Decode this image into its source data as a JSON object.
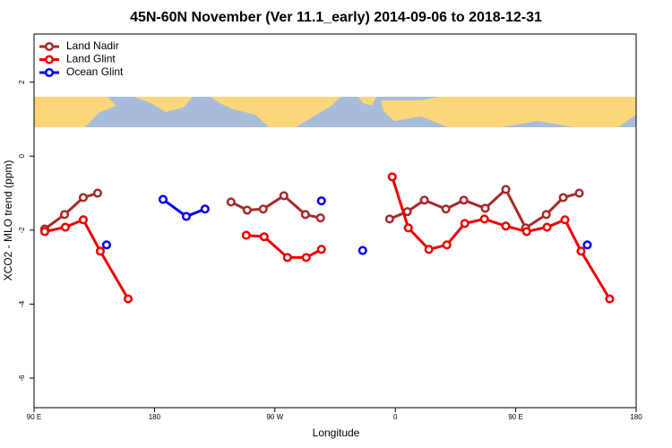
{
  "chart_data": {
    "type": "line",
    "title": "45N-60N November (Ver 11.1_early)   2014-09-06 to 2018-12-31",
    "x_label": "Longitude",
    "y_label": "XCO2 - MLO trend (ppm)",
    "xlim": [
      90,
      540
    ],
    "ylim": [
      -6.8,
      3.3
    ],
    "xticks": [
      {
        "value": 90,
        "label": "90 E"
      },
      180,
      {
        "value": 270,
        "label": "90 W"
      },
      {
        "value": 360,
        "label": "0"
      },
      {
        "value": 450,
        "label": "90 E"
      },
      {
        "value": 540,
        "label": "180"
      }
    ],
    "yticks": [
      -6,
      -4,
      -2,
      0,
      2
    ],
    "legend": "topleft",
    "series": [
      {
        "name": "Land Nadir",
        "color": "#a52a2a",
        "x": [
          98,
          112.8,
          126.8,
          137.5,
          null,
          237.2,
          249.3,
          261.3,
          276.7,
          292.8,
          304.1,
          null,
          355.7,
          369,
          381.7,
          397.8,
          411.2,
          427.2,
          442.6,
          457.4,
          472.8,
          485.5,
          497.5
        ],
        "values": [
          -1.97,
          -1.58,
          -1.12,
          -1.0,
          null,
          -1.24,
          -1.46,
          -1.43,
          -1.07,
          -1.58,
          -1.67,
          null,
          -1.7,
          -1.5,
          -1.19,
          -1.43,
          -1.19,
          -1.41,
          -0.9,
          -1.94,
          -1.58,
          -1.12,
          -1.0
        ]
      },
      {
        "name": "Land Glint",
        "color": "#ee0000",
        "x": [
          98,
          113.4,
          126.8,
          139.5,
          160.3,
          null,
          248.6,
          262,
          279.4,
          293.4,
          304.8,
          null,
          357.7,
          369.7,
          385.1,
          398.5,
          411.9,
          426.6,
          442.6,
          458.1,
          473.4,
          486.8,
          498.8,
          520.2
        ],
        "values": [
          -2.04,
          -1.92,
          -1.72,
          -2.57,
          -3.86,
          null,
          -2.14,
          -2.18,
          -2.74,
          -2.74,
          -2.52,
          null,
          -0.56,
          -1.94,
          -2.52,
          -2.4,
          -1.82,
          -1.7,
          -1.89,
          -2.04,
          -1.92,
          -1.72,
          -2.57,
          -3.86
        ]
      },
      {
        "name": "Ocean Glint",
        "color": "#0000ee",
        "x": [
          144.2,
          null,
          186.4,
          203.8,
          217.8,
          null,
          304.8,
          null,
          335.6,
          null,
          503.5
        ],
        "values": [
          -2.4,
          null,
          -1.17,
          -1.63,
          -1.43,
          null,
          -1.21,
          null,
          -2.55,
          null,
          -2.4
        ]
      }
    ]
  }
}
